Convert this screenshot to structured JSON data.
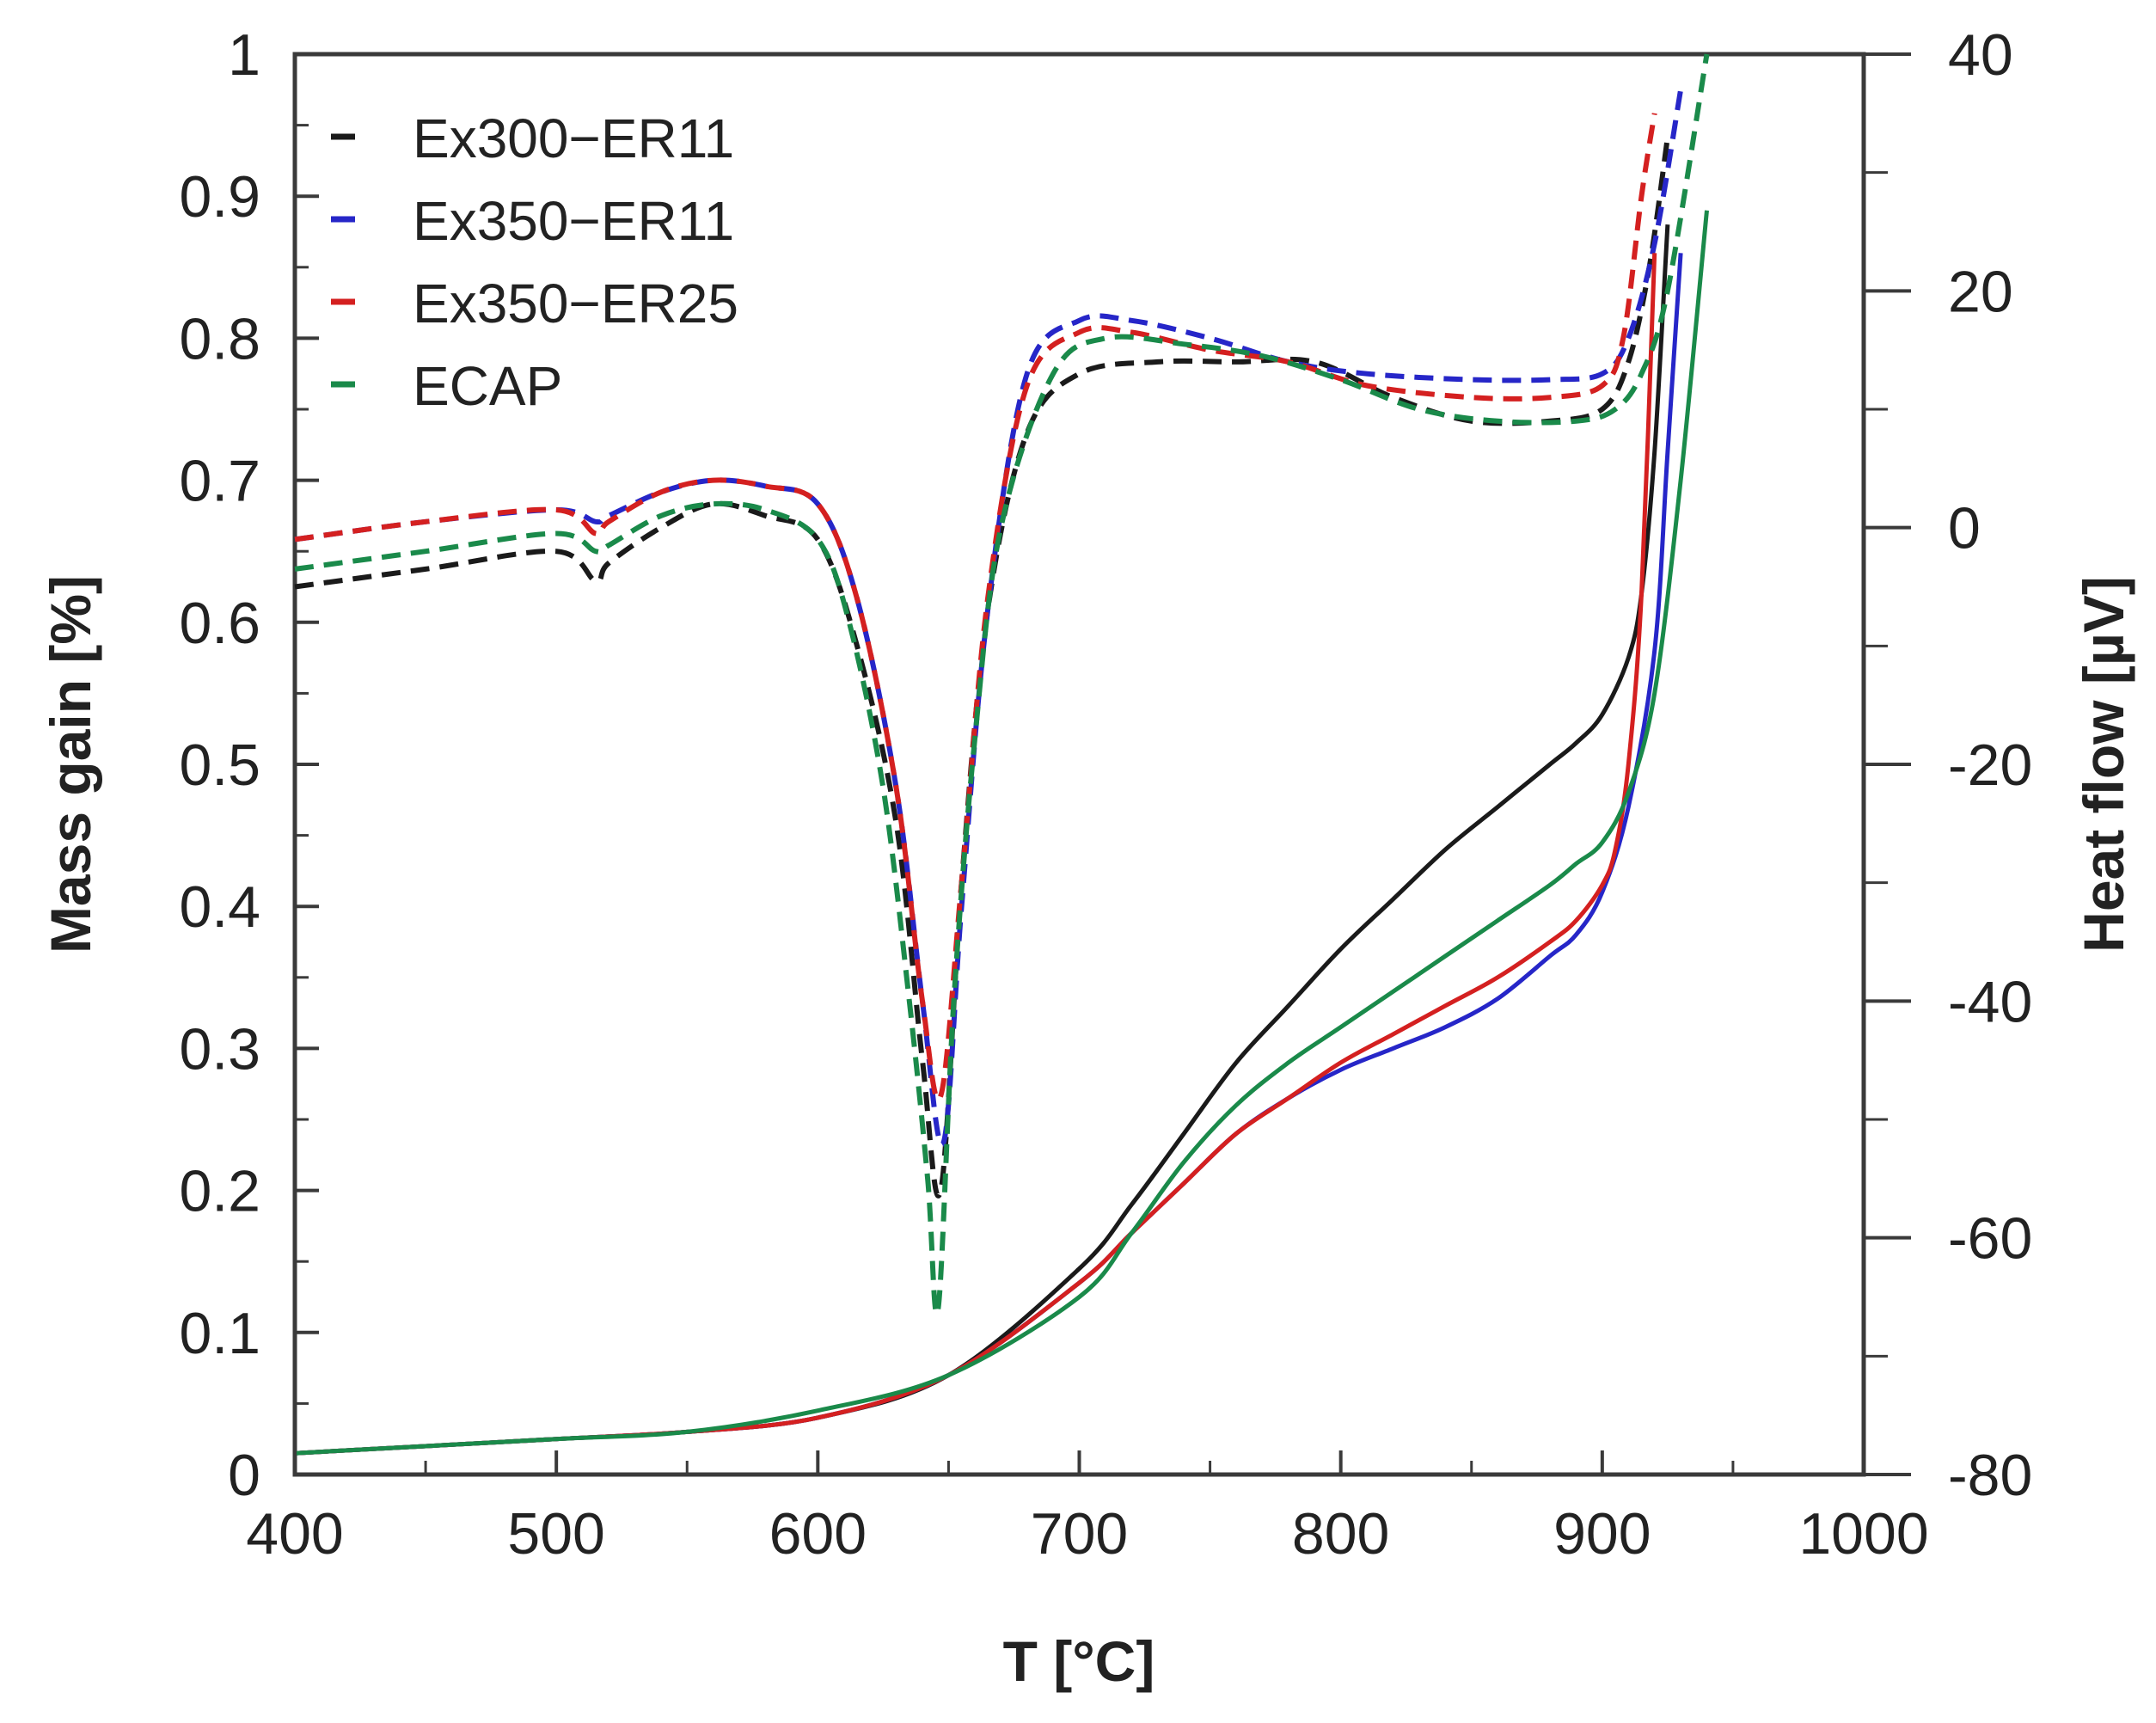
{
  "chart_data": {
    "type": "line",
    "title": "",
    "xlabel": "T [°C]",
    "ylabel": "Mass gain [%]",
    "y2label": "Heat flow [µV]",
    "xlim": [
      400,
      1000
    ],
    "ylim": [
      0,
      1
    ],
    "y2lim": [
      -80,
      40
    ],
    "xticks": [
      400,
      500,
      600,
      700,
      800,
      900,
      1000
    ],
    "yticks": [
      0,
      0.1,
      0.2,
      0.3,
      0.4,
      0.5,
      0.6,
      0.7,
      0.8,
      0.9,
      1
    ],
    "ytick_labels": [
      "0",
      "0.1",
      "0.2",
      "0.3",
      "0.4",
      "0.5",
      "0.6",
      "0.7",
      "0.8",
      "0.9",
      "1"
    ],
    "y2ticks": [
      -80,
      -60,
      -40,
      -20,
      0,
      20,
      40
    ],
    "grid": false,
    "legend_position": "top-left",
    "legend_note": "each legend color applies to a dashed heat-flow curve (right axis) and a solid mass-gain curve (left axis)",
    "series": [
      {
        "name": "Ex300−ER11",
        "color": "#1a1a1a",
        "mass_gain": {
          "x": [
            400,
            450,
            500,
            550,
            600,
            650,
            700,
            720,
            740,
            760,
            780,
            800,
            820,
            840,
            860,
            880,
            890,
            900,
            910,
            915,
            920,
            925
          ],
          "y": [
            0.015,
            0.02,
            0.025,
            0.03,
            0.04,
            0.07,
            0.145,
            0.19,
            0.24,
            0.29,
            0.33,
            0.37,
            0.405,
            0.44,
            0.47,
            0.5,
            0.515,
            0.535,
            0.575,
            0.62,
            0.72,
            0.88
          ]
        },
        "heat_flow": {
          "x": [
            400,
            450,
            500,
            515,
            520,
            540,
            560,
            580,
            600,
            615,
            630,
            640,
            647,
            655,
            665,
            680,
            700,
            730,
            760,
            790,
            820,
            850,
            880,
            900,
            910,
            918,
            925
          ],
          "y": [
            -5,
            -3.5,
            -2,
            -4.5,
            -3,
            0,
            2,
            1,
            -1,
            -10,
            -25,
            -45,
            -56,
            -30,
            -7,
            8,
            13,
            14,
            14,
            14,
            11,
            9,
            9,
            10,
            14,
            22,
            33
          ]
        }
      },
      {
        "name": "Ex350−ER11",
        "color": "#2626c8",
        "mass_gain": {
          "x": [
            400,
            450,
            500,
            550,
            600,
            650,
            700,
            720,
            740,
            760,
            780,
            800,
            820,
            840,
            860,
            880,
            890,
            900,
            910,
            920,
            925,
            930
          ],
          "y": [
            0.015,
            0.02,
            0.025,
            0.03,
            0.04,
            0.07,
            0.135,
            0.17,
            0.205,
            0.24,
            0.265,
            0.285,
            0.3,
            0.315,
            0.335,
            0.365,
            0.38,
            0.41,
            0.47,
            0.58,
            0.72,
            0.86
          ]
        },
        "heat_flow": {
          "x": [
            400,
            450,
            500,
            515,
            520,
            540,
            560,
            580,
            600,
            615,
            630,
            640,
            648,
            655,
            665,
            680,
            700,
            720,
            750,
            780,
            810,
            850,
            880,
            900,
            910,
            920,
            930
          ],
          "y": [
            -1,
            0.5,
            1.5,
            0.5,
            1,
            3,
            4,
            3.5,
            2,
            -6,
            -22,
            -40,
            -52,
            -32,
            -7,
            13,
            17.5,
            17.5,
            16,
            14,
            13,
            12.5,
            12.5,
            13,
            16,
            24,
            37
          ]
        }
      },
      {
        "name": "Ex350−ER25",
        "color": "#d42020",
        "mass_gain": {
          "x": [
            400,
            450,
            500,
            550,
            600,
            650,
            700,
            720,
            740,
            760,
            780,
            800,
            820,
            840,
            860,
            880,
            890,
            900,
            905,
            910,
            915,
            920
          ],
          "y": [
            0.015,
            0.02,
            0.025,
            0.03,
            0.04,
            0.07,
            0.135,
            0.17,
            0.205,
            0.24,
            0.265,
            0.29,
            0.31,
            0.33,
            0.35,
            0.375,
            0.39,
            0.415,
            0.44,
            0.5,
            0.62,
            0.86
          ]
        },
        "heat_flow": {
          "x": [
            400,
            450,
            500,
            515,
            520,
            540,
            560,
            580,
            600,
            615,
            630,
            640,
            647,
            655,
            665,
            680,
            700,
            720,
            750,
            780,
            810,
            850,
            880,
            900,
            908,
            915,
            920
          ],
          "y": [
            -1,
            0.5,
            1.5,
            -0.5,
            0.5,
            3,
            4,
            3.5,
            2,
            -6,
            -22,
            -40,
            -48,
            -30,
            -6,
            12,
            16.5,
            16.5,
            15,
            14,
            12,
            11,
            11,
            12,
            16,
            28,
            35
          ]
        }
      },
      {
        "name": "ECAP",
        "color": "#1a8a4a",
        "mass_gain": {
          "x": [
            400,
            450,
            500,
            550,
            600,
            650,
            700,
            720,
            740,
            760,
            780,
            800,
            820,
            840,
            860,
            880,
            890,
            900,
            910,
            920,
            930,
            940
          ],
          "y": [
            0.015,
            0.02,
            0.025,
            0.03,
            0.045,
            0.07,
            0.125,
            0.17,
            0.22,
            0.26,
            0.29,
            0.315,
            0.34,
            0.365,
            0.39,
            0.415,
            0.43,
            0.445,
            0.48,
            0.55,
            0.7,
            0.89
          ]
        },
        "heat_flow": {
          "x": [
            400,
            450,
            500,
            515,
            520,
            540,
            560,
            580,
            600,
            612,
            625,
            635,
            642,
            646,
            652,
            660,
            670,
            690,
            710,
            740,
            770,
            800,
            830,
            860,
            890,
            905,
            915,
            925,
            940
          ],
          "y": [
            -3.5,
            -2,
            -0.5,
            -2,
            -1.5,
            1,
            2,
            1.5,
            -1,
            -8,
            -22,
            -40,
            -55,
            -66,
            -40,
            -18,
            0,
            13,
            16,
            15.5,
            14.5,
            12.5,
            10,
            9,
            9,
            10,
            13,
            20,
            40
          ]
        }
      }
    ]
  }
}
